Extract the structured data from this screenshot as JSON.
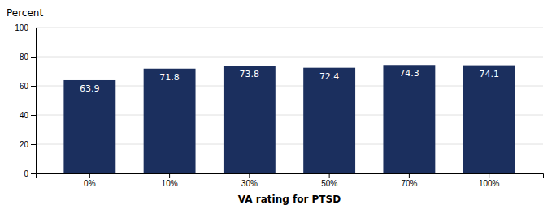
{
  "chart_data": {
    "type": "bar",
    "xlabel": "VA rating for PTSD",
    "ylabel": "Percent",
    "categories": [
      "0%",
      "10%",
      "30%",
      "50%",
      "70%",
      "100%"
    ],
    "values": [
      63.9,
      71.8,
      73.8,
      72.4,
      74.3,
      74.1
    ],
    "color": "#1b2f5e",
    "ylim": [
      0,
      100
    ],
    "yticks": [
      0,
      20,
      40,
      60,
      80,
      100
    ],
    "grid": true,
    "data_labels": true
  }
}
